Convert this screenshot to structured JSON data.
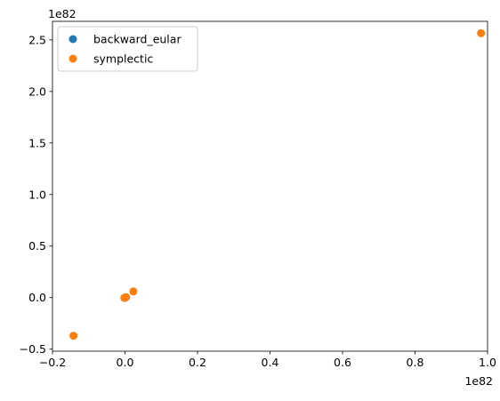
{
  "chart_data": {
    "type": "scatter",
    "title": "",
    "xlabel": "",
    "ylabel": "",
    "x_offset_label": "1e82",
    "y_offset_label": "1e82",
    "xlim": [
      -0.2,
      1.0
    ],
    "ylim": [
      -0.52,
      2.68
    ],
    "x_ticks": [
      -0.2,
      0.0,
      0.2,
      0.4,
      0.6,
      0.8,
      1.0
    ],
    "x_tick_labels": [
      "−0.2",
      "0.0",
      "0.2",
      "0.4",
      "0.6",
      "0.8",
      "1.0"
    ],
    "y_ticks": [
      -0.5,
      0.0,
      0.5,
      1.0,
      1.5,
      2.0,
      2.5
    ],
    "y_tick_labels": [
      "−0.5",
      "0.0",
      "0.5",
      "1.0",
      "1.5",
      "2.0",
      "2.5"
    ],
    "grid": false,
    "legend_position": "upper-left",
    "series": [
      {
        "name": "backward_eular",
        "color": "#1f77b4",
        "points": [
          {
            "x": 0.0,
            "y": 0.0
          },
          {
            "x": 0.001,
            "y": 0.001
          },
          {
            "x": -0.001,
            "y": -0.001
          },
          {
            "x": 0.0005,
            "y": -0.0005
          }
        ]
      },
      {
        "name": "symplectic",
        "color": "#ff7f0e",
        "points": [
          {
            "x": 0.0,
            "y": 0.0
          },
          {
            "x": 0.001,
            "y": 0.002
          },
          {
            "x": -0.002,
            "y": -0.003
          },
          {
            "x": 0.003,
            "y": 0.004
          },
          {
            "x": 0.023,
            "y": 0.06
          },
          {
            "x": -0.142,
            "y": -0.37
          },
          {
            "x": 0.982,
            "y": 2.565
          }
        ]
      }
    ]
  }
}
